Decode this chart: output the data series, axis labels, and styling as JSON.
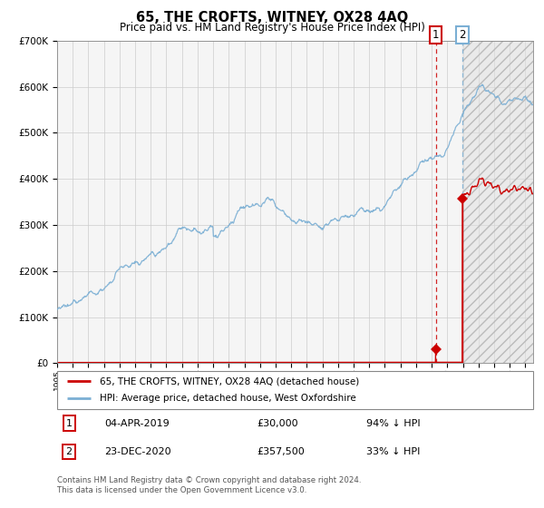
{
  "title": "65, THE CROFTS, WITNEY, OX28 4AQ",
  "subtitle": "Price paid vs. HM Land Registry's House Price Index (HPI)",
  "legend_line1": "65, THE CROFTS, WITNEY, OX28 4AQ (detached house)",
  "legend_line2": "HPI: Average price, detached house, West Oxfordshire",
  "transaction1_date": "04-APR-2019",
  "transaction1_price": 30000,
  "transaction1_text": "£30,000",
  "transaction1_pct": "94% ↓ HPI",
  "transaction2_date": "23-DEC-2020",
  "transaction2_price": 357500,
  "transaction2_text": "£357,500",
  "transaction2_pct": "33% ↓ HPI",
  "footnote": "Contains HM Land Registry data © Crown copyright and database right 2024.\nThis data is licensed under the Open Government Licence v3.0.",
  "hpi_color": "#7bafd4",
  "price_color": "#cc0000",
  "vline1_color": "#cc0000",
  "vline2_color": "#7bafd4",
  "plot_bg_color": "#f5f5f5",
  "grid_color": "#cccccc",
  "ylim": [
    0,
    700000
  ],
  "xlim_start": 1995.0,
  "xlim_end": 2025.5,
  "transaction1_x": 2019.26,
  "transaction2_x": 2020.98
}
